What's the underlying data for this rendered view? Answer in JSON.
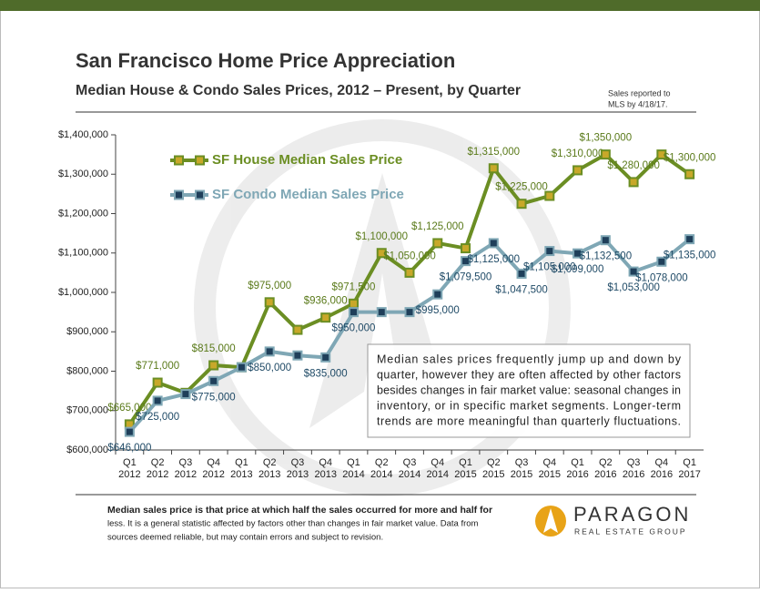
{
  "chart_data": {
    "type": "line",
    "title": "San Francisco Home Price Appreciation",
    "subtitle": "Median House & Condo Sales Prices, 2012 – Present, by Quarter",
    "note": [
      "Sales reported to",
      "MLS by 4/18/17."
    ],
    "annotation": [
      "Median sales prices frequently jump up and down by",
      "quarter, however they are often affected by other factors",
      "besides changes in fair market value: seasonal changes in",
      "inventory, or in specific market segments. Longer-term",
      "trends are more meaningful than quarterly fluctuations."
    ],
    "footnote": [
      "Median sales price is that price at which half the sales occurred for more and half for",
      "less. It is a general statistic affected by factors other than changes in fair market value. Data from",
      "sources deemed reliable, but may contain errors and subject to revision."
    ],
    "logo": {
      "name": "PARAGON",
      "tagline": "REAL ESTATE GROUP"
    },
    "categories": [
      [
        "Q1",
        "2012"
      ],
      [
        "Q2",
        "2012"
      ],
      [
        "Q3",
        "2012"
      ],
      [
        "Q4",
        "2012"
      ],
      [
        "Q1",
        "2013"
      ],
      [
        "Q2",
        "2013"
      ],
      [
        "Q3",
        "2013"
      ],
      [
        "Q4",
        "2013"
      ],
      [
        "Q1",
        "2014"
      ],
      [
        "Q2",
        "2014"
      ],
      [
        "Q3",
        "2014"
      ],
      [
        "Q4",
        "2014"
      ],
      [
        "Q1",
        "2015"
      ],
      [
        "Q2",
        "2015"
      ],
      [
        "Q3",
        "2015"
      ],
      [
        "Q4",
        "2015"
      ],
      [
        "Q1",
        "2016"
      ],
      [
        "Q2",
        "2016"
      ],
      [
        "Q3",
        "2016"
      ],
      [
        "Q4",
        "2016"
      ],
      [
        "Q1",
        "2017"
      ]
    ],
    "series": [
      {
        "name": "SF House Median Sales Price",
        "color": "#6b8e23",
        "marker": "#c8a82a",
        "label_color": "#5a7a1a",
        "values": [
          665000,
          771000,
          745000,
          815000,
          810000,
          975000,
          905000,
          936000,
          971500,
          1100000,
          1050000,
          1125000,
          1112000,
          1315000,
          1225000,
          1245000,
          1310000,
          1350000,
          1280000,
          1350000,
          1300000
        ],
        "value_labels": [
          "$665,000",
          "$771,000",
          null,
          "$815,000",
          null,
          "$975,000",
          null,
          "$936,000",
          "$971,500",
          "$1,100,000",
          "$1,050,000",
          "$1,125,000",
          null,
          "$1,315,000",
          "$1,225,000",
          null,
          "$1,310,000",
          "$1,350,000",
          "$1,280,000",
          null,
          "$1,300,000"
        ]
      },
      {
        "name": "SF Condo Median Sales Price",
        "color": "#7fa7b5",
        "marker": "#1f3f5a",
        "label_color": "#1f4a66",
        "values": [
          646000,
          725000,
          742000,
          775000,
          810000,
          850000,
          840000,
          835000,
          950000,
          950000,
          950000,
          995000,
          1079500,
          1125000,
          1047500,
          1105000,
          1099000,
          1132500,
          1053000,
          1078000,
          1135000
        ],
        "value_labels": [
          "$646,000",
          "$725,000",
          null,
          "$775,000",
          null,
          "$850,000",
          null,
          "$835,000",
          "$950,000",
          null,
          null,
          "$995,000",
          "$1,079,500",
          "$1,125,000",
          "$1,047,500",
          "$1,105,000",
          "$1,099,000",
          "$1,132,500",
          "$1,053,000",
          "$1,078,000",
          "$1,135,000"
        ]
      }
    ],
    "ylim": [
      600000,
      1400000
    ],
    "yticks": [
      {
        "value": 600000,
        "label": "$600,000"
      },
      {
        "value": 700000,
        "label": "$700,000"
      },
      {
        "value": 800000,
        "label": "$800,000"
      },
      {
        "value": 900000,
        "label": "$900,000"
      },
      {
        "value": 1000000,
        "label": "$1,000,000"
      },
      {
        "value": 1100000,
        "label": "$1,100,000"
      },
      {
        "value": 1200000,
        "label": "$1,200,000"
      },
      {
        "value": 1300000,
        "label": "$1,300,000"
      },
      {
        "value": 1400000,
        "label": "$1,400,000"
      }
    ]
  }
}
